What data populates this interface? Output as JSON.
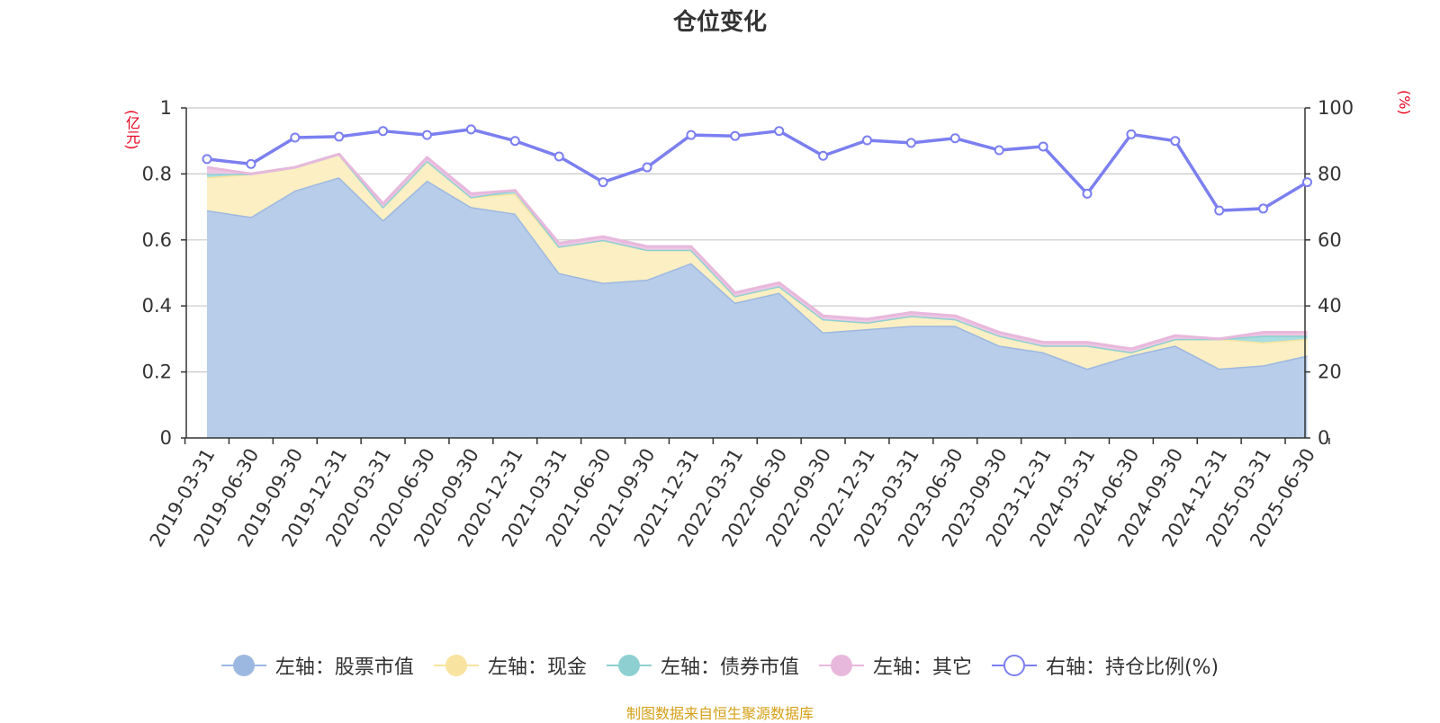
{
  "chart_data": {
    "type": "area",
    "title": "仓位变化",
    "left_axis_unit": "(亿元)",
    "right_axis_unit": "(%)",
    "categories": [
      "2019-03-31",
      "2019-06-30",
      "2019-09-30",
      "2019-12-31",
      "2020-03-31",
      "2020-06-30",
      "2020-09-30",
      "2020-12-31",
      "2021-03-31",
      "2021-06-30",
      "2021-09-30",
      "2021-12-31",
      "2022-03-31",
      "2022-06-30",
      "2022-09-30",
      "2022-12-31",
      "2023-03-31",
      "2023-06-30",
      "2023-09-30",
      "2023-12-31",
      "2024-03-31",
      "2024-06-30",
      "2024-09-30",
      "2024-12-31",
      "2025-03-31",
      "2025-06-30"
    ],
    "left_axis": {
      "min": 0,
      "max": 1,
      "ticks": [
        0,
        0.2,
        0.4,
        0.6,
        0.8,
        1
      ],
      "tick_labels": [
        "0",
        "0.2",
        "0.4",
        "0.6",
        "0.8",
        "1"
      ]
    },
    "right_axis": {
      "min": 0,
      "max": 100,
      "ticks": [
        0,
        20,
        40,
        60,
        80,
        100
      ],
      "tick_labels": [
        "0",
        "20",
        "40",
        "60",
        "80",
        "100"
      ]
    },
    "grid": true,
    "legend_position": "bottom",
    "series": [
      {
        "name": "左轴：股票市值",
        "axis": "left",
        "stacked": true,
        "color": "#9db8e0",
        "fill": "#b8cdea",
        "values": [
          0.69,
          0.67,
          0.75,
          0.79,
          0.66,
          0.78,
          0.7,
          0.68,
          0.5,
          0.47,
          0.48,
          0.53,
          0.41,
          0.44,
          0.32,
          0.33,
          0.34,
          0.34,
          0.28,
          0.26,
          0.21,
          0.25,
          0.28,
          0.21,
          0.22,
          0.25
        ]
      },
      {
        "name": "左轴：现金",
        "axis": "left",
        "stacked": true,
        "color": "#f9e3a0",
        "fill": "#fbefc3",
        "values": [
          0.1,
          0.13,
          0.07,
          0.07,
          0.04,
          0.06,
          0.03,
          0.06,
          0.08,
          0.13,
          0.09,
          0.04,
          0.02,
          0.02,
          0.04,
          0.02,
          0.03,
          0.02,
          0.03,
          0.02,
          0.07,
          0.01,
          0.02,
          0.09,
          0.07,
          0.05
        ]
      },
      {
        "name": "左轴：债券市值",
        "axis": "left",
        "stacked": true,
        "color": "#8ed0d2",
        "fill": "#a9dddf",
        "values": [
          0.01,
          0.0,
          0.0,
          0.0,
          0.0,
          0.0,
          0.0,
          0.01,
          0.0,
          0.0,
          0.0,
          0.0,
          0.0,
          0.0,
          0.0,
          0.0,
          0.0,
          0.0,
          0.0,
          0.0,
          0.0,
          0.0,
          0.0,
          0.0,
          0.02,
          0.01
        ]
      },
      {
        "name": "左轴：其它",
        "axis": "left",
        "stacked": true,
        "color": "#e8b8dc",
        "fill": "#eec7e3",
        "values": [
          0.02,
          0.0,
          0.0,
          0.0,
          0.01,
          0.01,
          0.01,
          0.0,
          0.01,
          0.01,
          0.01,
          0.01,
          0.01,
          0.01,
          0.01,
          0.01,
          0.01,
          0.01,
          0.01,
          0.01,
          0.01,
          0.01,
          0.01,
          0.0,
          0.01,
          0.01
        ]
      },
      {
        "name": "右轴：持仓比例(%)",
        "axis": "right",
        "stacked": false,
        "color": "#7b7ff0",
        "values": [
          84.5,
          83,
          91,
          91.3,
          93,
          91.8,
          93.5,
          90,
          85.3,
          77.5,
          82,
          91.8,
          91.5,
          93,
          85.5,
          90.2,
          89.4,
          90.8,
          87.2,
          88.3,
          74,
          92,
          90,
          68.9,
          69.5,
          77.5
        ]
      }
    ],
    "source_note": "制图数据来自恒生聚源数据库"
  }
}
